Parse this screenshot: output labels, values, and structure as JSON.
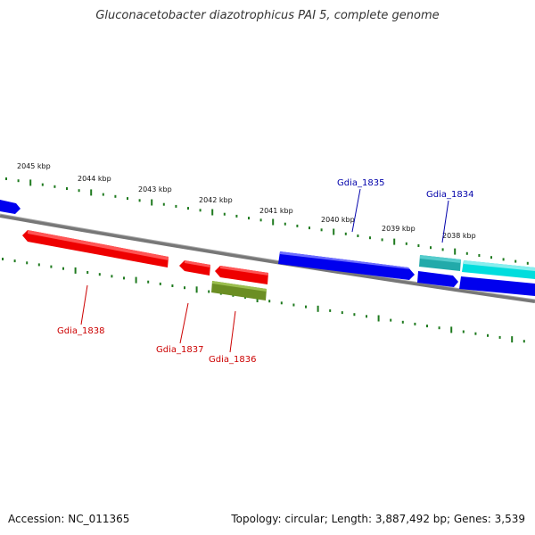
{
  "title": "Gluconacetobacter diazotrophicus PAI 5, complete genome",
  "footer": {
    "accession": "Accession: NC_011365",
    "summary": "Topology: circular; Length: 3,887,492 bp; Genes: 3,539"
  },
  "colors": {
    "backbone": "#777777",
    "tick": "#1f7a1f",
    "forward_gene": "#0000ee",
    "reverse_gene": "#ee0000",
    "cyan_gene": "#00dddd",
    "teal_gene": "#22aaaa",
    "olive_gene": "#6b8e23",
    "reverse_label": "#cc0000",
    "forward_label": "#0000aa"
  },
  "ticks": [
    "2045 kbp",
    "2044 kbp",
    "2043 kbp",
    "2042 kbp",
    "2041 kbp",
    "2040 kbp",
    "2039 kbp",
    "2038 kbp"
  ],
  "gene_labels": {
    "gdia_1838": "Gdia_1838",
    "gdia_1837": "Gdia_1837",
    "gdia_1836": "Gdia_1836",
    "gdia_1835": "Gdia_1835",
    "gdia_1834": "Gdia_1834"
  }
}
